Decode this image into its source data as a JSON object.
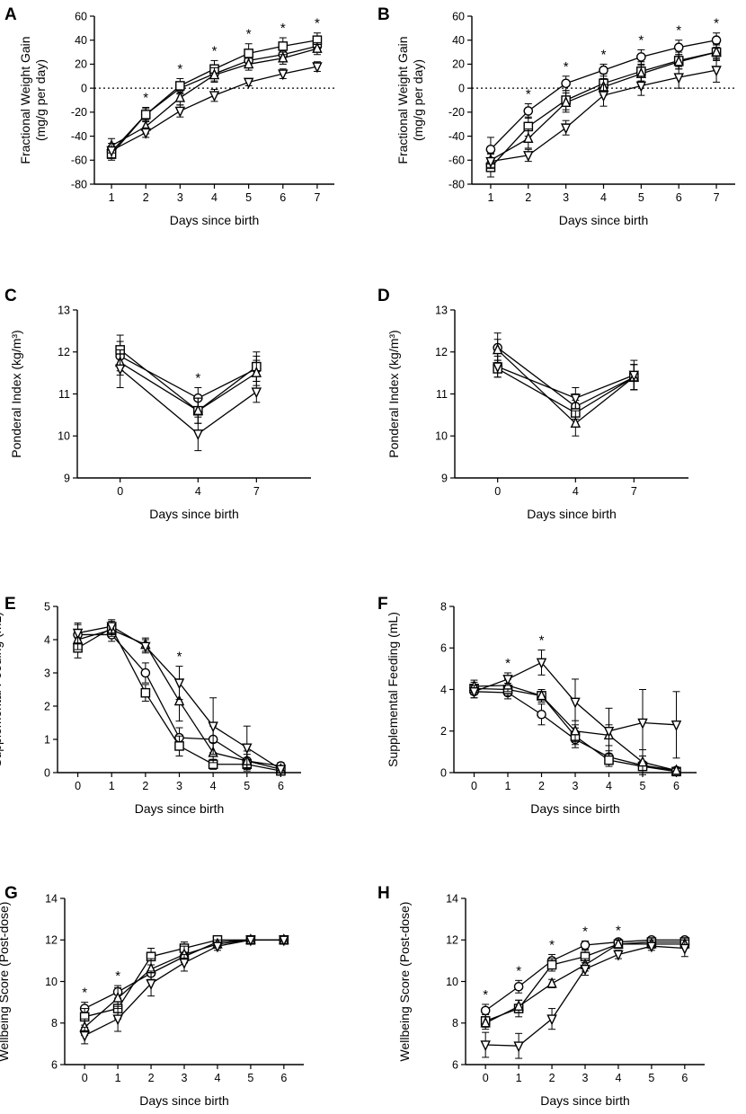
{
  "chart_data": [
    {
      "id": "A",
      "type": "line",
      "letter": "A",
      "ylabel": [
        "Fractional Weight Gain",
        "(mg/g per day)"
      ],
      "xlabel": "Days since birth",
      "x": [
        1,
        2,
        3,
        4,
        5,
        6,
        7
      ],
      "xticks": [
        1,
        2,
        3,
        4,
        5,
        6,
        7
      ],
      "xlim": [
        0.5,
        7.5
      ],
      "ylim": [
        -80,
        60
      ],
      "yticks": [
        -80,
        -60,
        -40,
        -20,
        0,
        20,
        40,
        60
      ],
      "zero_line": true,
      "stars": [
        2,
        3,
        4,
        5,
        6,
        7
      ],
      "series": [
        {
          "marker": "circle",
          "values": [
            -53,
            -22,
            0,
            12,
            23,
            28,
            35
          ],
          "err": [
            5,
            5,
            5,
            6,
            5,
            5,
            5
          ]
        },
        {
          "marker": "square",
          "values": [
            -55,
            -22,
            2,
            16,
            29,
            35,
            40
          ],
          "err": [
            5,
            6,
            6,
            7,
            8,
            7,
            6
          ]
        },
        {
          "marker": "triangle",
          "values": [
            -48,
            -32,
            -8,
            11,
            20,
            25,
            33
          ],
          "err": [
            6,
            6,
            6,
            6,
            5,
            5,
            5
          ]
        },
        {
          "marker": "tri-down",
          "values": [
            -52,
            -37,
            -19,
            -6,
            5,
            12,
            18
          ],
          "err": [
            6,
            4,
            5,
            5,
            3,
            4,
            4
          ]
        }
      ]
    },
    {
      "id": "B",
      "type": "line",
      "letter": "B",
      "ylabel": [
        "Fractional Weight Gain",
        "(mg/g per day)"
      ],
      "xlabel": "Days since birth",
      "x": [
        1,
        2,
        3,
        4,
        5,
        6,
        7
      ],
      "xticks": [
        1,
        2,
        3,
        4,
        5,
        6,
        7
      ],
      "xlim": [
        0.5,
        7.5
      ],
      "ylim": [
        -80,
        60
      ],
      "yticks": [
        -80,
        -60,
        -40,
        -20,
        0,
        20,
        40,
        60
      ],
      "zero_line": true,
      "stars": [
        2,
        3,
        4,
        5,
        6,
        7
      ],
      "series": [
        {
          "marker": "circle",
          "values": [
            -51,
            -19,
            4,
            15,
            26,
            34,
            40
          ],
          "err": [
            10,
            6,
            6,
            5,
            6,
            6,
            6
          ]
        },
        {
          "marker": "square",
          "values": [
            -66,
            -32,
            -10,
            4,
            14,
            23,
            30
          ],
          "err": [
            8,
            8,
            8,
            8,
            8,
            7,
            7
          ]
        },
        {
          "marker": "triangle",
          "values": [
            -60,
            -42,
            -12,
            1,
            12,
            22,
            30
          ],
          "err": [
            6,
            8,
            8,
            7,
            7,
            6,
            6
          ]
        },
        {
          "marker": "tri-down",
          "values": [
            -61,
            -56,
            -33,
            -6,
            2,
            9,
            15
          ],
          "err": [
            6,
            5,
            6,
            9,
            8,
            9,
            10
          ]
        }
      ]
    },
    {
      "id": "C",
      "type": "line",
      "letter": "C",
      "ylabel": [
        "Ponderal Index (kg/m³)"
      ],
      "xlabel": "Days since birth",
      "x": [
        0,
        4,
        7
      ],
      "xticks": [
        0,
        4,
        7
      ],
      "xlim": [
        -2.2,
        9.8
      ],
      "ylim": [
        9,
        13
      ],
      "yticks": [
        9,
        10,
        11,
        12,
        13
      ],
      "zero_line": false,
      "stars": [
        4
      ],
      "series": [
        {
          "marker": "circle",
          "values": [
            11.9,
            10.9,
            11.6
          ],
          "err": [
            0.35,
            0.25,
            0.3
          ]
        },
        {
          "marker": "square",
          "values": [
            12.05,
            10.6,
            11.65
          ],
          "err": [
            0.35,
            0.3,
            0.35
          ]
        },
        {
          "marker": "triangle",
          "values": [
            11.75,
            10.6,
            11.5
          ],
          "err": [
            0.3,
            0.3,
            0.3
          ]
        },
        {
          "marker": "tri-down",
          "values": [
            11.6,
            10.05,
            11.05
          ],
          "err": [
            0.45,
            0.4,
            0.25
          ]
        }
      ]
    },
    {
      "id": "D",
      "type": "line",
      "letter": "D",
      "ylabel": [
        "Ponderal Index (kg/m³)"
      ],
      "xlabel": "Days since birth",
      "x": [
        0,
        4,
        7
      ],
      "xticks": [
        0,
        4,
        7
      ],
      "xlim": [
        -2.2,
        9.8
      ],
      "ylim": [
        9,
        13
      ],
      "yticks": [
        9,
        10,
        11,
        12,
        13
      ],
      "zero_line": false,
      "stars": [],
      "series": [
        {
          "marker": "circle",
          "values": [
            12.1,
            10.7,
            11.4
          ],
          "err": [
            0.35,
            0.3,
            0.3
          ]
        },
        {
          "marker": "square",
          "values": [
            11.6,
            10.55,
            11.4
          ],
          "err": [
            0.2,
            0.3,
            0.3
          ]
        },
        {
          "marker": "triangle",
          "values": [
            12.05,
            10.3,
            11.4
          ],
          "err": [
            0.25,
            0.3,
            0.3
          ]
        },
        {
          "marker": "tri-down",
          "values": [
            11.65,
            10.9,
            11.45
          ],
          "err": [
            0.25,
            0.25,
            0.35
          ]
        }
      ]
    },
    {
      "id": "E",
      "type": "line",
      "letter": "E",
      "ylabel": [
        "Supplemental Feeding (mL)"
      ],
      "xlabel": "Days since birth",
      "x": [
        0,
        1,
        2,
        3,
        4,
        5,
        6
      ],
      "xticks": [
        0,
        1,
        2,
        3,
        4,
        5,
        6
      ],
      "xlim": [
        -0.6,
        6.6
      ],
      "ylim": [
        0,
        5
      ],
      "yticks": [
        0,
        1,
        2,
        3,
        4,
        5
      ],
      "zero_line": false,
      "stars": [
        3
      ],
      "series": [
        {
          "marker": "circle",
          "values": [
            4.15,
            4.15,
            3.0,
            1.05,
            1.0,
            0.35,
            0.2
          ],
          "err": [
            0.3,
            0.2,
            0.3,
            0.3,
            0.4,
            0.3,
            0.1
          ]
        },
        {
          "marker": "square",
          "values": [
            3.75,
            4.35,
            2.4,
            0.8,
            0.25,
            0.25,
            0.05
          ],
          "err": [
            0.3,
            0.2,
            0.25,
            0.3,
            0.15,
            0.15,
            0.05
          ]
        },
        {
          "marker": "triangle",
          "values": [
            4.0,
            4.3,
            3.85,
            2.15,
            0.6,
            0.35,
            0.1
          ],
          "err": [
            0.3,
            0.2,
            0.2,
            0.6,
            0.3,
            0.2,
            0.1
          ]
        },
        {
          "marker": "tri-down",
          "values": [
            4.2,
            4.4,
            3.8,
            2.7,
            1.4,
            0.75,
            0.1
          ],
          "err": [
            0.3,
            0.2,
            0.2,
            0.5,
            0.85,
            0.65,
            0.1
          ]
        }
      ]
    },
    {
      "id": "F",
      "type": "line",
      "letter": "F",
      "ylabel": [
        "Supplemental Feeding (mL)"
      ],
      "xlabel": "Days since birth",
      "x": [
        0,
        1,
        2,
        3,
        4,
        5,
        6
      ],
      "xticks": [
        0,
        1,
        2,
        3,
        4,
        5,
        6
      ],
      "xlim": [
        -0.6,
        6.6
      ],
      "ylim": [
        0,
        8
      ],
      "yticks": [
        0,
        2,
        4,
        6,
        8
      ],
      "zero_line": false,
      "stars": [
        1,
        2
      ],
      "series": [
        {
          "marker": "circle",
          "values": [
            3.9,
            3.85,
            2.8,
            1.6,
            0.75,
            0.35,
            0.1
          ],
          "err": [
            0.3,
            0.3,
            0.5,
            0.4,
            0.3,
            0.2,
            0.1
          ]
        },
        {
          "marker": "square",
          "values": [
            4.05,
            4.0,
            3.7,
            1.75,
            0.6,
            0.3,
            0.05
          ],
          "err": [
            0.3,
            0.3,
            0.3,
            0.4,
            0.3,
            0.2,
            0.05
          ]
        },
        {
          "marker": "triangle",
          "values": [
            4.15,
            4.2,
            3.7,
            2.0,
            1.8,
            0.5,
            0.1
          ],
          "err": [
            0.3,
            0.3,
            0.3,
            0.5,
            0.5,
            0.6,
            0.1
          ]
        },
        {
          "marker": "tri-down",
          "values": [
            3.9,
            4.5,
            5.3,
            3.4,
            2.0,
            2.4,
            2.3
          ],
          "err": [
            0.3,
            0.3,
            0.6,
            1.1,
            1.1,
            1.6,
            1.6
          ]
        }
      ]
    },
    {
      "id": "G",
      "type": "line",
      "letter": "G",
      "ylabel": [
        "Wellbeing Score (Post-dose)"
      ],
      "xlabel": "Days since birth",
      "x": [
        0,
        1,
        2,
        3,
        4,
        5,
        6
      ],
      "xticks": [
        0,
        1,
        2,
        3,
        4,
        5,
        6
      ],
      "xlim": [
        -0.6,
        6.6
      ],
      "ylim": [
        6,
        14
      ],
      "yticks": [
        6,
        8,
        10,
        12,
        14
      ],
      "zero_line": false,
      "stars": [
        0,
        1
      ],
      "series": [
        {
          "marker": "circle",
          "values": [
            8.7,
            9.5,
            10.4,
            11.2,
            11.9,
            12.0,
            12.0
          ],
          "err": [
            0.3,
            0.3,
            0.4,
            0.3,
            0.1,
            0.05,
            0.05
          ]
        },
        {
          "marker": "square",
          "values": [
            8.3,
            8.7,
            11.2,
            11.6,
            12.0,
            12.0,
            12.0
          ],
          "err": [
            0.4,
            0.5,
            0.4,
            0.3,
            0.1,
            0.05,
            0.05
          ]
        },
        {
          "marker": "triangle",
          "values": [
            7.8,
            9.2,
            10.6,
            11.3,
            11.8,
            12.0,
            12.0
          ],
          "err": [
            0.4,
            0.5,
            0.5,
            0.4,
            0.2,
            0.05,
            0.05
          ]
        },
        {
          "marker": "tri-down",
          "values": [
            7.4,
            8.2,
            9.9,
            10.9,
            11.7,
            12.0,
            12.0
          ],
          "err": [
            0.4,
            0.6,
            0.6,
            0.4,
            0.2,
            0.05,
            0.05
          ]
        }
      ]
    },
    {
      "id": "H",
      "type": "line",
      "letter": "H",
      "ylabel": [
        "Wellbeing Score (Post-dose)"
      ],
      "xlabel": "Days since birth",
      "x": [
        0,
        1,
        2,
        3,
        4,
        5,
        6
      ],
      "xticks": [
        0,
        1,
        2,
        3,
        4,
        5,
        6
      ],
      "xlim": [
        -0.6,
        6.6
      ],
      "ylim": [
        6,
        14
      ],
      "yticks": [
        6,
        8,
        10,
        12,
        14
      ],
      "zero_line": false,
      "stars": [
        0,
        1,
        2,
        3,
        4
      ],
      "series": [
        {
          "marker": "circle",
          "values": [
            8.6,
            9.75,
            11.0,
            11.75,
            11.9,
            12.0,
            12.0
          ],
          "err": [
            0.3,
            0.3,
            0.3,
            0.2,
            0.1,
            0.05,
            0.1
          ]
        },
        {
          "marker": "square",
          "values": [
            8.1,
            8.7,
            10.8,
            11.2,
            11.8,
            11.9,
            11.9
          ],
          "err": [
            0.3,
            0.4,
            0.3,
            0.3,
            0.2,
            0.1,
            0.2
          ]
        },
        {
          "marker": "triangle",
          "values": [
            8.0,
            8.8,
            9.9,
            10.8,
            11.8,
            11.8,
            11.8
          ],
          "err": [
            0.3,
            0.3,
            0.2,
            0.3,
            0.2,
            0.2,
            0.2
          ]
        },
        {
          "marker": "tri-down",
          "values": [
            6.95,
            6.9,
            8.2,
            10.6,
            11.3,
            11.7,
            11.6
          ],
          "err": [
            0.6,
            0.6,
            0.5,
            0.3,
            0.2,
            0.2,
            0.4
          ]
        }
      ]
    }
  ]
}
